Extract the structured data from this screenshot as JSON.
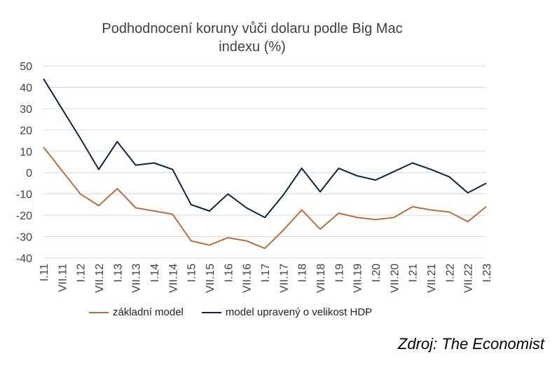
{
  "chart_data": {
    "type": "line",
    "title_line1": "Podhodnocení koruny vůči dolaru podle Big Mac",
    "title_line2": "indexu (%)",
    "x": [
      "I.11",
      "VII.11",
      "I.12",
      "VII.12",
      "I.13",
      "VII.13",
      "I.14",
      "VII.14",
      "I.15",
      "VII.15",
      "I.16",
      "VII.16",
      "I.17",
      "VII.17",
      "I.18",
      "VII.18",
      "I.19",
      "VII.19",
      "I.20",
      "VII.20",
      "I.21",
      "VII.21",
      "I.22",
      "VII.22",
      "I.23"
    ],
    "ylim": [
      -40,
      50
    ],
    "yticks": [
      50,
      40,
      30,
      20,
      10,
      0,
      -10,
      -20,
      -30,
      -40
    ],
    "grid": true,
    "legend_position": "bottom",
    "series": [
      {
        "name": "základní model",
        "color": "#b5703f",
        "values": [
          12,
          1,
          -10,
          -15.5,
          -7.5,
          -16.5,
          -18,
          -19.5,
          -32,
          -34,
          -30.5,
          -32,
          -35.5,
          -27,
          -17.5,
          -26.5,
          -19,
          -21,
          -22,
          -21,
          -16,
          -17.5,
          -18.5,
          -23,
          -16
        ]
      },
      {
        "name": "model upravený o velikost HDP",
        "color": "#0b2440",
        "values": [
          44,
          30,
          16,
          1.5,
          14.5,
          3.5,
          4.5,
          1.5,
          -15,
          -18,
          -10,
          -16.5,
          -21,
          -10.5,
          2,
          -9,
          2,
          -1.5,
          -3.5,
          0.5,
          4.5,
          1.5,
          -2,
          -9.5,
          -5
        ]
      }
    ]
  },
  "source": "Zdroj: The Economist"
}
